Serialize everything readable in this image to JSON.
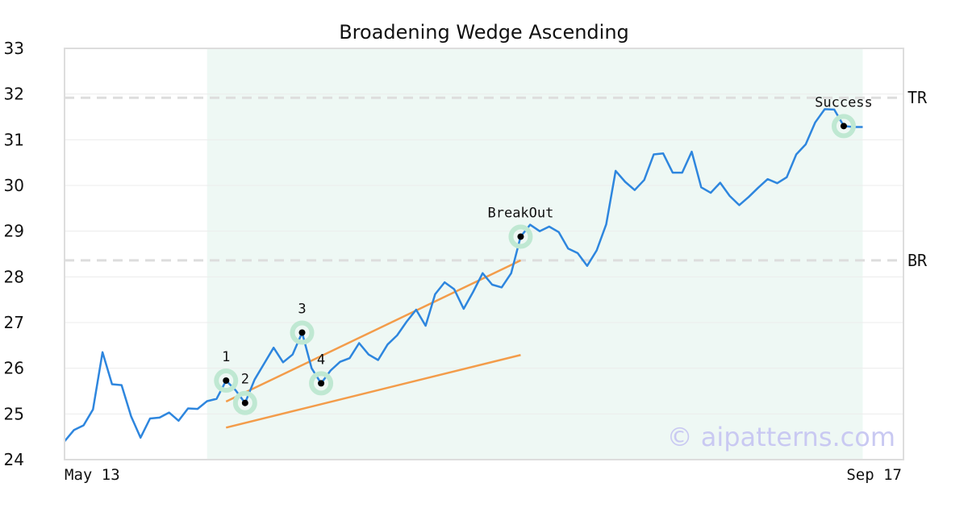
{
  "chart_data": {
    "type": "line",
    "title": "Broadening Wedge Ascending",
    "watermark": "© aipatterns.com",
    "ylim": [
      24,
      33
    ],
    "yticks": [
      "24",
      "25",
      "26",
      "27",
      "28",
      "29",
      "30",
      "31",
      "32",
      "33"
    ],
    "x_start_label": "May 13",
    "x_end_label": "Sep 17",
    "grid": true,
    "colors": {
      "price": "#2e86de",
      "trend": "#f39c4a",
      "marker_halo": "#bfe8d2",
      "highlight_region": "#eef8f4",
      "level_line": "#dddddd",
      "frame": "#dddddd"
    },
    "series": [
      {
        "values": [
          24.4,
          24.65,
          24.75,
          25.1,
          26.35,
          25.65,
          25.63,
          24.95,
          24.48,
          24.9,
          24.92,
          25.03,
          24.85,
          25.12,
          25.11,
          25.28,
          25.33,
          25.73,
          25.52,
          25.24,
          25.75,
          26.1,
          26.45,
          26.13,
          26.3,
          26.78,
          26.0,
          25.67,
          25.95,
          26.14,
          26.22,
          26.55,
          26.3,
          26.18,
          26.52,
          26.72,
          27.02,
          27.28,
          26.93,
          27.62,
          27.88,
          27.73,
          27.3,
          27.67,
          28.08,
          27.83,
          27.77,
          28.08,
          28.88,
          29.14,
          29.0,
          29.1,
          28.98,
          28.62,
          28.52,
          28.24,
          28.58,
          29.15,
          30.32,
          30.08,
          29.9,
          30.12,
          30.68,
          30.7,
          30.28,
          30.28,
          30.74,
          29.96,
          29.84,
          30.06,
          29.77,
          29.57,
          29.75,
          29.95,
          30.14,
          30.05,
          30.18,
          30.68,
          30.9,
          31.38,
          31.67,
          31.66,
          31.3,
          31.28,
          31.28
        ]
      }
    ],
    "highlight_range": [
      15,
      84
    ],
    "trend_lines": [
      {
        "x": [
          17,
          48
        ],
        "y": [
          25.27,
          28.36
        ]
      },
      {
        "x": [
          17,
          48
        ],
        "y": [
          24.7,
          26.29
        ]
      }
    ],
    "levels": [
      {
        "label": "TR",
        "value": 31.92
      },
      {
        "label": "BR",
        "value": 28.36
      }
    ],
    "points": [
      {
        "label": "1",
        "x": 17,
        "y": 25.73
      },
      {
        "label": "2",
        "x": 19,
        "y": 25.24
      },
      {
        "label": "3",
        "x": 25,
        "y": 26.78
      },
      {
        "label": "4",
        "x": 27,
        "y": 25.67
      },
      {
        "label": "BreakOut",
        "x": 48,
        "y": 28.88
      },
      {
        "label": "Success",
        "x": 82,
        "y": 31.3
      }
    ]
  }
}
